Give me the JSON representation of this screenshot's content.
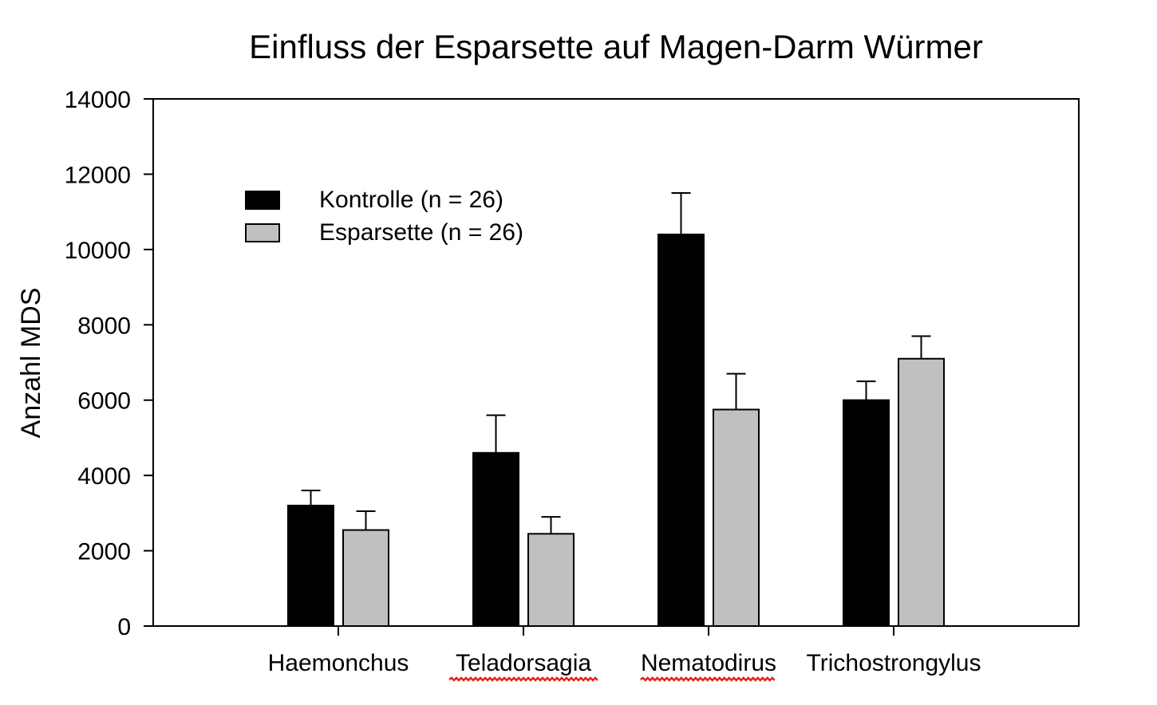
{
  "chart_data": {
    "type": "bar",
    "title": "Einfluss der Esparsette auf Magen-Darm Würmer",
    "xlabel": "",
    "ylabel": "Anzahl MDS",
    "categories": [
      "Haemonchus",
      "Teladorsagia",
      "Nematodirus",
      "Trichostrongylus"
    ],
    "series": [
      {
        "name": "Kontrolle (n = 26)",
        "color": "#000000",
        "values": [
          3200,
          4600,
          10400,
          6000
        ],
        "error": [
          400,
          1000,
          1100,
          500
        ]
      },
      {
        "name": "Esparsette (n = 26)",
        "color": "#c0c0c0",
        "values": [
          2550,
          2450,
          5750,
          7100
        ],
        "error": [
          500,
          450,
          950,
          600
        ]
      }
    ],
    "ylim": [
      0,
      14000
    ],
    "yticks": [
      0,
      2000,
      4000,
      6000,
      8000,
      10000,
      12000,
      14000
    ],
    "grid": false,
    "legend_position": "top-left",
    "spellcheck_underlined_categories": [
      "Teladorsagia",
      "Nematodirus"
    ],
    "spellcheck_color": "#e8201a"
  }
}
